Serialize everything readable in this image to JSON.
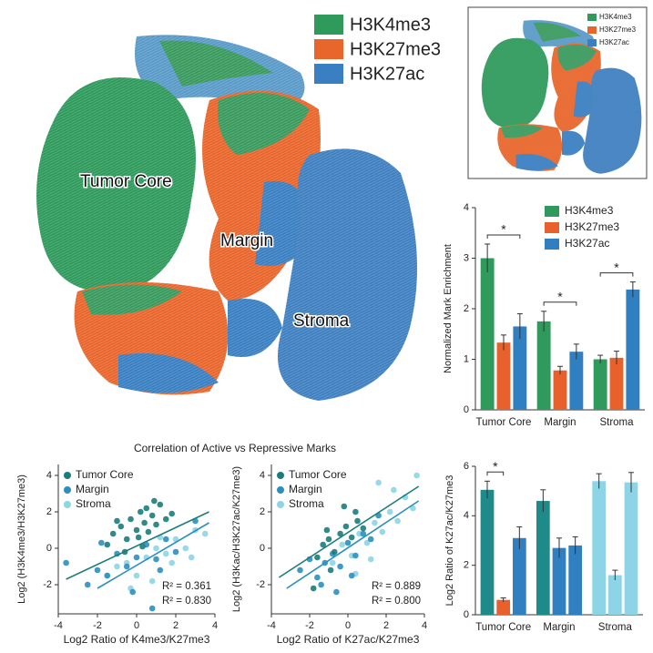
{
  "tissue_image": {
    "legend": [
      {
        "name": "H3K4me3",
        "color": "#2f9a5c"
      },
      {
        "name": "H3K27me3",
        "color": "#e8662c"
      },
      {
        "name": "H3K27ac",
        "color": "#3a7fc1"
      }
    ],
    "regions": [
      "Tumor Core",
      "Margin",
      "Stroma"
    ]
  },
  "thumbnail": {
    "legend": [
      {
        "name": "H3K4me3",
        "color": "#2f9a5c"
      },
      {
        "name": "H3K27me3",
        "color": "#e8662c"
      },
      {
        "name": "H3K27ac",
        "color": "#3a7fc1"
      }
    ]
  },
  "chart_data": [
    {
      "type": "bar",
      "y_label": "Normalized Mark Enrichment",
      "categories": [
        "Tumor Core",
        "Margin",
        "Stroma"
      ],
      "series": [
        {
          "name": "H3K4me3",
          "color": "#2f9a5c",
          "values": [
            3.0,
            1.75,
            1.0
          ],
          "errors": [
            0.28,
            0.2,
            0.08
          ]
        },
        {
          "name": "H3K27me3",
          "color": "#e8612c",
          "values": [
            1.33,
            0.78,
            1.03
          ],
          "errors": [
            0.15,
            0.08,
            0.13
          ]
        },
        {
          "name": "H3K27ac",
          "color": "#2f7fc1",
          "values": [
            1.65,
            1.15,
            2.38
          ],
          "errors": [
            0.25,
            0.15,
            0.15
          ]
        }
      ],
      "ylim": [
        0,
        4
      ],
      "yticks": [
        0,
        1,
        2,
        3,
        4
      ],
      "annotations": [
        "*",
        "*",
        "*"
      ]
    },
    {
      "type": "scatter",
      "title": "Correlation of Active vs Repressive Marks",
      "x_label": "Log2 Ratio of K4me3/K27me3",
      "y_label": "Log2 (H3K4me3/H3K27me3)",
      "series": [
        {
          "name": "Tumor Core",
          "color": "#1b7d7a",
          "x": [
            -1.5,
            -1.2,
            -0.8,
            -0.5,
            -0.3,
            0,
            0.2,
            0.4,
            0.6,
            0.8,
            1,
            1.2,
            1.5,
            -0.6,
            0.1,
            0.9,
            1.8,
            -1,
            0.5,
            0.3
          ],
          "y": [
            0.2,
            0.8,
            1.2,
            0.5,
            1.6,
            1.0,
            2.0,
            1.4,
            0.9,
            1.8,
            1.3,
            2.4,
            1.6,
            -0.2,
            0.6,
            2.6,
            1.9,
            1.5,
            2.2,
            0.1
          ]
        },
        {
          "name": "Margin",
          "color": "#2a8fc0",
          "x": [
            -3.6,
            -2.5,
            -2,
            -1.5,
            -1,
            -0.5,
            0,
            0.5,
            1,
            1.5,
            2,
            -1.8,
            0.8,
            1.2,
            -0.2,
            3
          ],
          "y": [
            -0.8,
            -2,
            -1.2,
            -1.5,
            -0.3,
            -1,
            -0.5,
            0.2,
            -0.6,
            0.5,
            -0.2,
            0.3,
            -3.3,
            -1.2,
            -2.4,
            1.5
          ]
        },
        {
          "name": "Stroma",
          "color": "#8dd5e6",
          "x": [
            -1.5,
            -1,
            -0.5,
            0,
            0.5,
            1,
            1.5,
            2,
            2.5,
            3,
            3.5,
            0.8,
            1.8,
            2.8,
            -0.3,
            1.2
          ],
          "y": [
            -1.5,
            -1,
            -0.8,
            -1.5,
            -0.5,
            0,
            -0.3,
            0.5,
            0,
            1,
            0.8,
            -1.8,
            -0.8,
            -0.5,
            -2.2,
            0.6
          ]
        }
      ],
      "fits": [
        {
          "color": "#1b7d7a",
          "x": [
            -3.6,
            3.7
          ],
          "y": [
            -1.7,
            2.0
          ]
        },
        {
          "color": "#2a8fc0",
          "x": [
            -2,
            3.7
          ],
          "y": [
            -2.2,
            1.4
          ]
        }
      ],
      "annotations": [
        "R² = 0.361",
        "R² = 0.830"
      ],
      "xlim": [
        -4,
        4
      ],
      "xticks": [
        -4,
        -2,
        0,
        2,
        4
      ],
      "ylim": [
        -3.6,
        4.6
      ],
      "yticks": [
        -2,
        0,
        2,
        4
      ]
    },
    {
      "type": "scatter",
      "x_label": "Log2 Ratio of K27ac/K27me3",
      "y_label": "Log2 (H3Kac/H3K27ac/K27me3)",
      "series": [
        {
          "name": "Tumor Core",
          "color": "#1b7d7a",
          "x": [
            -1.6,
            -1.3,
            -1,
            -0.7,
            -0.4,
            -0.1,
            0.2,
            0.5,
            -0.9,
            -0.2,
            0.4,
            0.8,
            -1.8,
            -1.1
          ],
          "y": [
            -0.5,
            0.2,
            0.5,
            -0.2,
            0.8,
            1.2,
            0.6,
            1.5,
            -1.2,
            2.3,
            2.0,
            1.1,
            -2.2,
            1.0
          ]
        },
        {
          "name": "Margin",
          "color": "#2a8fc0",
          "x": [
            -2.5,
            -2,
            -1.6,
            -1.2,
            -0.8,
            -0.4,
            0,
            0.4,
            0.8,
            1.2,
            -1.4,
            -0.6,
            0.2,
            1.6
          ],
          "y": [
            -1.2,
            -0.6,
            -1.6,
            -0.8,
            -0.3,
            -1.0,
            0.3,
            -0.4,
            0.8,
            0.5,
            -2.0,
            -2.4,
            -1.5,
            1.8
          ]
        },
        {
          "name": "Stroma",
          "color": "#8dd5e6",
          "x": [
            -0.8,
            -0.3,
            0.2,
            0.6,
            1,
            1.4,
            1.8,
            2.2,
            2.6,
            3,
            3.4,
            1.2,
            2.4,
            0.4,
            1.6,
            3.6
          ],
          "y": [
            -0.8,
            0.2,
            -0.4,
            0.8,
            0.3,
            1.4,
            0.9,
            2.0,
            1.5,
            2.8,
            2.2,
            -0.6,
            3.2,
            -1.4,
            3.6,
            4.0
          ]
        }
      ],
      "fits": [
        {
          "color": "#1b7d7a",
          "x": [
            -3.6,
            3.7
          ],
          "y": [
            -1.6,
            3.4
          ]
        },
        {
          "color": "#2a8fc0",
          "x": [
            -3.2,
            3.7
          ],
          "y": [
            -2.2,
            2.6
          ]
        }
      ],
      "annotations": [
        "R² = 0.889",
        "R² = 0.800"
      ],
      "xlim": [
        -4,
        4
      ],
      "xticks": [
        -4,
        -2,
        0,
        2,
        4
      ],
      "ylim": [
        -3.6,
        4.6
      ],
      "yticks": [
        -2,
        0,
        2,
        4
      ]
    },
    {
      "type": "bar",
      "y_label": "Log2 Ratio of K27ac/K27me3",
      "categories": [
        "Tumor Core",
        "Margin",
        "Stroma"
      ],
      "series": [
        {
          "values": [
            5.05,
            4.6,
            5.4
          ],
          "errors": [
            0.35,
            0.45,
            0.3
          ],
          "colors": [
            "#1f8a8a",
            "#1f8a8a",
            "#8dd5e6"
          ]
        },
        {
          "values": [
            0.6,
            2.7,
            1.6
          ],
          "errors": [
            0.08,
            0.4,
            0.2
          ],
          "colors": [
            "#e8612c",
            "#2f7fc1",
            "#8dd5e6"
          ]
        },
        {
          "values": [
            3.1,
            2.8,
            5.35
          ],
          "errors": [
            0.45,
            0.35,
            0.4
          ],
          "colors": [
            "#2f7fc1",
            "#2f7fc1",
            "#8dd5e6"
          ]
        }
      ],
      "ylim": [
        0,
        6
      ],
      "yticks": [
        0,
        2,
        4,
        6
      ],
      "annotations": [
        "*"
      ]
    }
  ]
}
